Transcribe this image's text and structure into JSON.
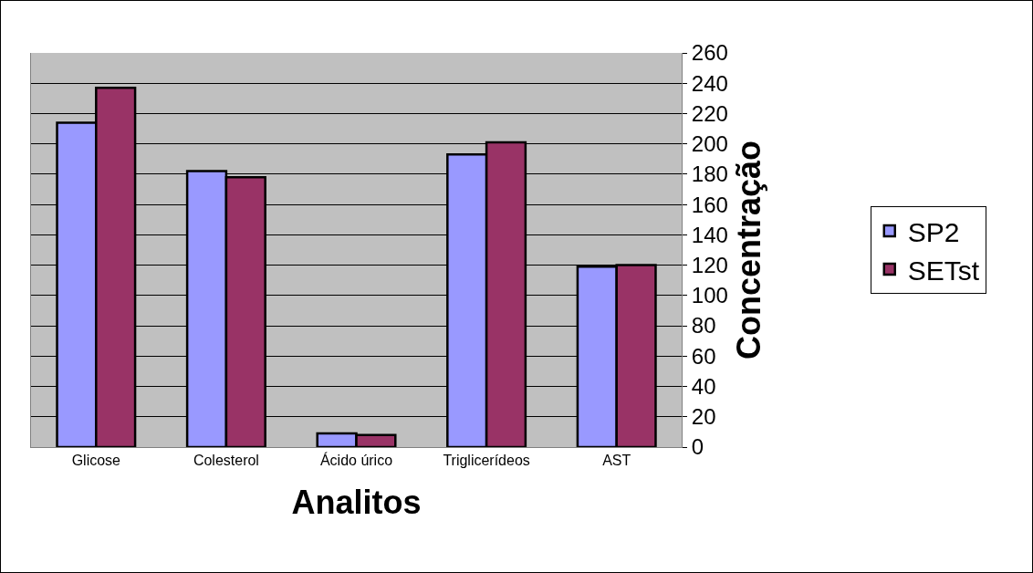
{
  "chart_data": {
    "type": "bar",
    "xlabel": "Analitos",
    "ylabel": "Concentração",
    "categories": [
      "Glicose",
      "Colesterol",
      "Ácido úrico",
      "Triglicerídeos",
      "AST"
    ],
    "series": [
      {
        "name": "SP2",
        "color": "#9999ff",
        "values": [
          214,
          182,
          9,
          193,
          119
        ]
      },
      {
        "name": "SETst",
        "color": "#993366",
        "values": [
          237,
          178,
          8,
          201,
          120
        ]
      }
    ],
    "ylim": [
      0,
      260
    ],
    "yticks": [
      0,
      20,
      40,
      60,
      80,
      100,
      120,
      140,
      160,
      180,
      200,
      220,
      240,
      260
    ],
    "grid": "y",
    "legend": "right"
  }
}
